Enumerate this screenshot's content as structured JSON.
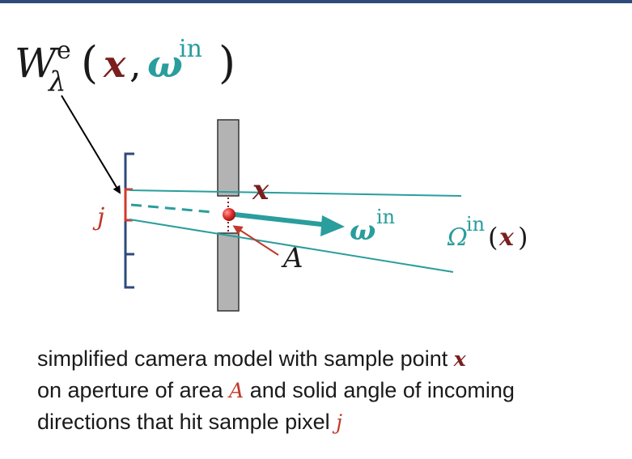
{
  "formula": {
    "W": "W",
    "sup": "e",
    "sub": "λ",
    "open": "(",
    "x": "x",
    "comma": ",",
    "omega": "ω",
    "in": "in",
    "close": ")"
  },
  "labels": {
    "x": "x",
    "j": "j",
    "A": "A",
    "omega": "ω",
    "in": "in",
    "Omega": "Ω",
    "Omega_in": "in",
    "Omega_open": "(",
    "Omega_x": "x",
    "Omega_close": ")"
  },
  "caption": {
    "line1_text": "simplified camera model with sample point ",
    "line1_var": "x",
    "line2_text_a": "on aperture of area ",
    "line2_var": "A",
    "line2_text_b": " and solid angle of incoming",
    "line3_text": "directions that hit sample pixel ",
    "line3_var": "j"
  },
  "colors": {
    "teal": "#2a9d9d",
    "darkred": "#7a1e1e",
    "red": "#c0392b",
    "navy": "#2e4a7a",
    "wall": "#b3b3b3"
  }
}
